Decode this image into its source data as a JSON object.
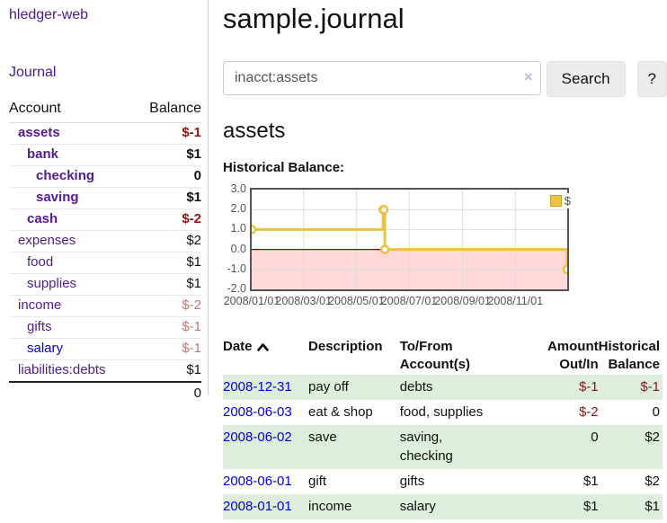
{
  "app": {
    "brand": "hledger-web"
  },
  "sidebar": {
    "nav": [
      {
        "label": "Journal"
      }
    ],
    "accounts_table": {
      "headers": {
        "account": "Account",
        "balance": "Balance"
      },
      "accounts": [
        {
          "label": "assets",
          "indent": 0,
          "bold": true,
          "balance": "$-1",
          "visited": true
        },
        {
          "label": "bank",
          "indent": 1,
          "bold": true,
          "balance": "$1",
          "visited": true
        },
        {
          "label": "checking",
          "indent": 2,
          "bold": true,
          "balance": "0",
          "visited": true
        },
        {
          "label": "saving",
          "indent": 2,
          "bold": true,
          "balance": "$1",
          "visited": true
        },
        {
          "label": "cash",
          "indent": 1,
          "bold": true,
          "balance": "$-2",
          "visited": true
        },
        {
          "label": "expenses",
          "indent": 0,
          "bold": false,
          "balance": "$2",
          "visited": true
        },
        {
          "label": "food",
          "indent": 1,
          "bold": false,
          "balance": "$1",
          "visited": true
        },
        {
          "label": "supplies",
          "indent": 1,
          "bold": false,
          "balance": "$1",
          "visited": true
        },
        {
          "label": "income",
          "indent": 0,
          "bold": false,
          "balance": "$-2",
          "visited": true
        },
        {
          "label": "gifts",
          "indent": 1,
          "bold": false,
          "balance": "$-1",
          "visited": true
        },
        {
          "label": "salary",
          "indent": 1,
          "bold": false,
          "balance": "$-1",
          "visited": false
        },
        {
          "label": "liabilities:debts",
          "indent": 0,
          "bold": false,
          "balance": "$1",
          "visited": true
        }
      ],
      "total": "0"
    }
  },
  "main": {
    "title": "sample.journal",
    "search": {
      "value": "inacct:assets",
      "clear_icon": "×",
      "button_label": "Search",
      "help_label": "?"
    },
    "account_heading": "assets",
    "chart_label": "Historical Balance:",
    "register": {
      "headers": {
        "date": "Date",
        "description": "Description",
        "accounts": "To/From Account(s)",
        "amount": "Amount Out/In",
        "balance": "Historical Balance"
      },
      "rows": [
        {
          "date": "2008-12-31",
          "description": "pay off",
          "accounts": "debts",
          "amount": "$-1",
          "balance": "$-1"
        },
        {
          "date": "2008-06-03",
          "description": "eat & shop",
          "accounts": "food, supplies",
          "amount": "$-2",
          "balance": "0"
        },
        {
          "date": "2008-06-02",
          "description": "save",
          "accounts": "saving, checking",
          "amount": "0",
          "balance": "$2"
        },
        {
          "date": "2008-06-01",
          "description": "gift",
          "accounts": "gifts",
          "amount": "$1",
          "balance": "$2"
        },
        {
          "date": "2008-01-01",
          "description": "income",
          "accounts": "salary",
          "amount": "$1",
          "balance": "$1"
        }
      ]
    }
  },
  "colors": {
    "link_purple": "#551a8b",
    "link_blue": "#0000dd",
    "negative_strong": "#8b1515",
    "negative_soft": "#b97c7c",
    "row_green": "#ddeedd"
  },
  "chart_data": {
    "type": "line",
    "title": "Historical Balance",
    "step": true,
    "series": [
      {
        "name": "$",
        "color": "#edc240",
        "points": [
          [
            "2008-01-01",
            1
          ],
          [
            "2008-06-01",
            2
          ],
          [
            "2008-06-02",
            2
          ],
          [
            "2008-06-03",
            0
          ],
          [
            "2008-12-31",
            -1
          ]
        ]
      }
    ],
    "x_range": [
      "2008-01-01",
      "2008-12-31"
    ],
    "y_range": [
      -2,
      3
    ],
    "x_ticks": [
      "2008/01/01",
      "2008/03/01",
      "2008/05/01",
      "2008/07/01",
      "2008/09/01",
      "2008/11/01"
    ],
    "y_ticks": [
      3.0,
      2.0,
      1.0,
      0.0,
      -1.0,
      -2.0
    ],
    "grid": true,
    "gridline_color": "#dcdcdc",
    "border_color": "#545454",
    "negative_fill": "#ffd9d9",
    "zero_line_color": "#8b0000",
    "marker_fill": "#ffffff",
    "legend": {
      "position": "top-right",
      "label": "$"
    }
  }
}
